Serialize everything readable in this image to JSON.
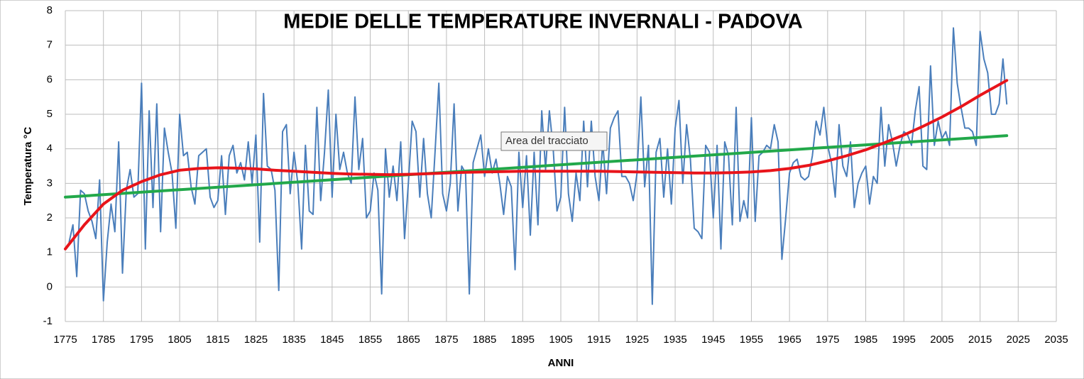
{
  "chart_data": {
    "type": "line",
    "title": "MEDIE DELLE TEMPERATURE INVERNALI - PADOVA",
    "ylabel": "Temperatura °C",
    "xlabel": "ANNI",
    "annotation": "Area del tracciato",
    "xlim": [
      1775,
      2035
    ],
    "xticks": [
      1775,
      1785,
      1795,
      1805,
      1815,
      1825,
      1835,
      1845,
      1855,
      1865,
      1875,
      1885,
      1895,
      1905,
      1915,
      1925,
      1935,
      1945,
      1955,
      1965,
      1975,
      1985,
      1995,
      2005,
      2015,
      2025,
      2035
    ],
    "ylim": [
      -1,
      8
    ],
    "yticks": [
      -1,
      0,
      1,
      2,
      3,
      4,
      5,
      6,
      7,
      8
    ],
    "grid": true,
    "series": [
      {
        "color": "#4a7ebb",
        "width": 2,
        "x": [
          1776,
          1777,
          1778,
          1779,
          1780,
          1781,
          1782,
          1783,
          1784,
          1785,
          1786,
          1787,
          1788,
          1789,
          1790,
          1791,
          1792,
          1793,
          1794,
          1795,
          1796,
          1797,
          1798,
          1799,
          1800,
          1801,
          1802,
          1803,
          1804,
          1805,
          1806,
          1807,
          1808,
          1809,
          1810,
          1811,
          1812,
          1813,
          1814,
          1815,
          1816,
          1817,
          1818,
          1819,
          1820,
          1821,
          1822,
          1823,
          1824,
          1825,
          1826,
          1827,
          1828,
          1829,
          1830,
          1831,
          1832,
          1833,
          1834,
          1835,
          1836,
          1837,
          1838,
          1839,
          1840,
          1841,
          1842,
          1843,
          1844,
          1845,
          1846,
          1847,
          1848,
          1849,
          1850,
          1851,
          1852,
          1853,
          1854,
          1855,
          1856,
          1857,
          1858,
          1859,
          1860,
          1861,
          1862,
          1863,
          1864,
          1865,
          1866,
          1867,
          1868,
          1869,
          1870,
          1871,
          1872,
          1873,
          1874,
          1875,
          1876,
          1877,
          1878,
          1879,
          1880,
          1881,
          1882,
          1883,
          1884,
          1885,
          1886,
          1887,
          1888,
          1889,
          1890,
          1891,
          1892,
          1893,
          1894,
          1895,
          1896,
          1897,
          1898,
          1899,
          1900,
          1901,
          1902,
          1903,
          1904,
          1905,
          1906,
          1907,
          1908,
          1909,
          1910,
          1911,
          1912,
          1913,
          1914,
          1915,
          1916,
          1917,
          1918,
          1919,
          1920,
          1921,
          1922,
          1923,
          1924,
          1925,
          1926,
          1927,
          1928,
          1929,
          1930,
          1931,
          1932,
          1933,
          1934,
          1935,
          1936,
          1937,
          1938,
          1939,
          1940,
          1941,
          1942,
          1943,
          1944,
          1945,
          1946,
          1947,
          1948,
          1949,
          1950,
          1951,
          1952,
          1953,
          1954,
          1955,
          1956,
          1957,
          1958,
          1959,
          1960,
          1961,
          1962,
          1963,
          1964,
          1965,
          1966,
          1967,
          1968,
          1969,
          1970,
          1971,
          1972,
          1973,
          1974,
          1975,
          1976,
          1977,
          1978,
          1979,
          1980,
          1981,
          1982,
          1983,
          1984,
          1985,
          1986,
          1987,
          1988,
          1989,
          1990,
          1991,
          1992,
          1993,
          1994,
          1995,
          1996,
          1997,
          1998,
          1999,
          2000,
          2001,
          2002,
          2003,
          2004,
          2005,
          2006,
          2007,
          2008,
          2009,
          2010,
          2011,
          2012,
          2013,
          2014,
          2015,
          2016,
          2017,
          2018,
          2019,
          2020,
          2021,
          2022
        ],
        "values": [
          1.3,
          1.8,
          0.3,
          2.8,
          2.7,
          2.2,
          1.9,
          1.4,
          3.1,
          -0.4,
          1.3,
          2.4,
          1.6,
          4.2,
          0.4,
          2.8,
          3.4,
          2.6,
          2.7,
          5.9,
          1.1,
          5.1,
          2.3,
          5.3,
          1.6,
          4.6,
          3.9,
          3.3,
          1.7,
          5.0,
          3.8,
          3.9,
          2.9,
          2.4,
          3.8,
          3.9,
          4.0,
          2.6,
          2.3,
          2.5,
          3.8,
          2.1,
          3.8,
          4.1,
          3.3,
          3.6,
          3.1,
          4.2,
          3.0,
          4.4,
          1.3,
          5.6,
          3.5,
          3.4,
          2.8,
          -0.1,
          4.5,
          4.7,
          2.7,
          3.9,
          3.0,
          1.1,
          4.1,
          2.2,
          2.1,
          5.2,
          2.5,
          3.9,
          5.7,
          2.6,
          5.0,
          3.4,
          3.9,
          3.3,
          3.0,
          5.5,
          3.4,
          4.3,
          2.0,
          2.2,
          3.3,
          2.8,
          -0.2,
          4.0,
          2.6,
          3.5,
          2.5,
          4.2,
          1.4,
          3.0,
          4.8,
          4.5,
          2.6,
          4.3,
          2.7,
          2.0,
          3.9,
          5.9,
          2.7,
          2.2,
          3.0,
          5.3,
          2.2,
          3.5,
          3.3,
          -0.2,
          3.6,
          4.0,
          4.4,
          3.2,
          4.0,
          3.3,
          3.7,
          3.0,
          2.1,
          3.2,
          2.9,
          0.5,
          3.9,
          2.3,
          3.8,
          1.5,
          3.9,
          1.8,
          5.1,
          3.4,
          5.1,
          4.0,
          2.2,
          2.6,
          5.2,
          2.7,
          1.9,
          3.3,
          2.5,
          4.8,
          2.9,
          4.8,
          3.2,
          2.5,
          4.2,
          2.7,
          4.6,
          4.9,
          5.1,
          3.2,
          3.2,
          3.0,
          2.5,
          3.3,
          5.5,
          2.9,
          4.1,
          -0.5,
          3.9,
          4.3,
          2.6,
          4.0,
          2.4,
          4.6,
          5.4,
          3.0,
          4.7,
          3.7,
          1.7,
          1.6,
          1.4,
          4.1,
          3.9,
          2.0,
          4.1,
          1.1,
          4.2,
          3.8,
          1.8,
          5.2,
          1.9,
          2.5,
          2.0,
          4.9,
          1.9,
          3.8,
          3.9,
          4.1,
          4.0,
          4.7,
          4.2,
          0.8,
          2.0,
          3.3,
          3.6,
          3.7,
          3.2,
          3.1,
          3.2,
          3.8,
          4.8,
          4.4,
          5.2,
          4.1,
          3.6,
          2.6,
          4.7,
          3.5,
          3.2,
          4.2,
          2.3,
          3.0,
          3.3,
          3.5,
          2.4,
          3.2,
          3.0,
          5.2,
          3.5,
          4.7,
          4.2,
          3.5,
          4.1,
          4.5,
          4.4,
          4.1,
          5.1,
          5.8,
          3.5,
          3.4,
          6.4,
          4.1,
          4.8,
          4.3,
          4.5,
          4.1,
          7.5,
          5.9,
          5.2,
          4.6,
          4.6,
          4.5,
          4.1,
          7.4,
          6.6,
          6.2,
          5.0,
          5.0,
          5.3,
          6.6,
          5.3
        ]
      },
      {
        "color": "#22a84a",
        "width": 4,
        "x": [
          1775,
          2022
        ],
        "values": [
          2.6,
          4.38
        ]
      },
      {
        "color": "#e8141a",
        "width": 4,
        "x": [
          1775,
          1780,
          1785,
          1790,
          1795,
          1800,
          1805,
          1810,
          1815,
          1820,
          1825,
          1830,
          1835,
          1840,
          1845,
          1850,
          1855,
          1860,
          1865,
          1870,
          1875,
          1880,
          1885,
          1890,
          1895,
          1900,
          1905,
          1910,
          1915,
          1920,
          1925,
          1930,
          1935,
          1940,
          1945,
          1950,
          1955,
          1960,
          1965,
          1970,
          1975,
          1980,
          1985,
          1990,
          1995,
          2000,
          2005,
          2010,
          2015,
          2022
        ],
        "values": [
          1.1,
          1.8,
          2.4,
          2.8,
          3.05,
          3.25,
          3.38,
          3.43,
          3.45,
          3.44,
          3.42,
          3.38,
          3.35,
          3.32,
          3.29,
          3.27,
          3.26,
          3.25,
          3.26,
          3.28,
          3.3,
          3.32,
          3.33,
          3.34,
          3.35,
          3.35,
          3.35,
          3.35,
          3.35,
          3.34,
          3.33,
          3.32,
          3.31,
          3.3,
          3.3,
          3.31,
          3.33,
          3.37,
          3.43,
          3.52,
          3.65,
          3.8,
          3.97,
          4.18,
          4.4,
          4.65,
          4.92,
          5.22,
          5.55,
          5.98
        ]
      }
    ]
  }
}
